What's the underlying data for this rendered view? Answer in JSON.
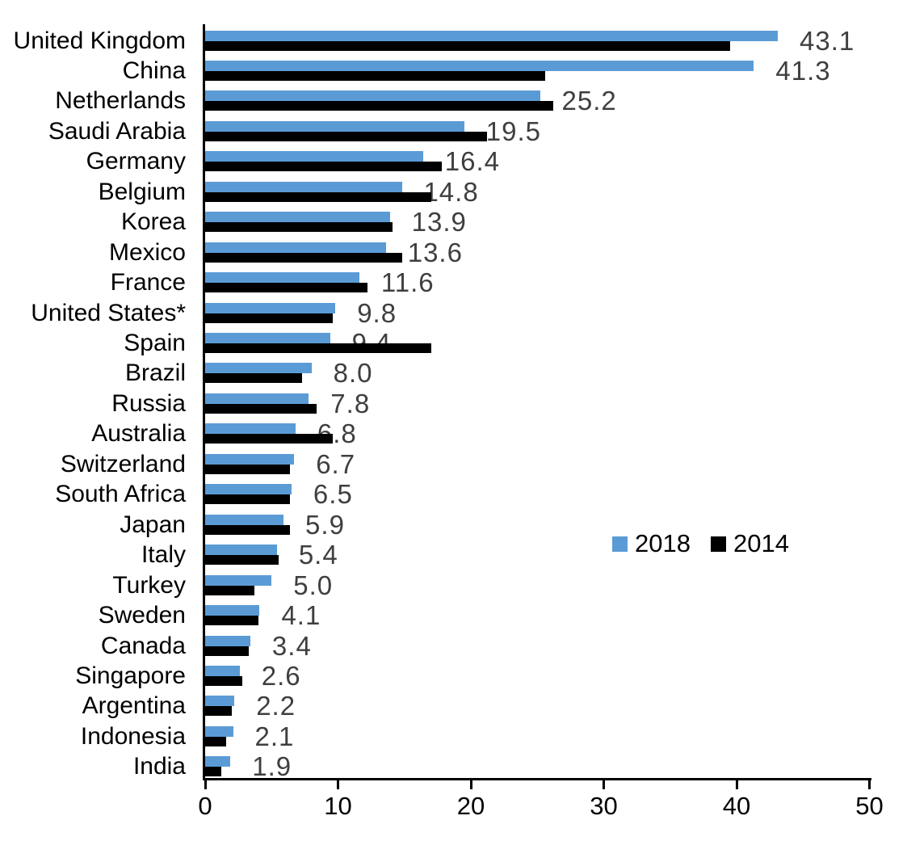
{
  "chart_data": {
    "type": "bar",
    "orientation": "horizontal",
    "title": "",
    "xlabel": "",
    "ylabel": "",
    "xlim": [
      0,
      50
    ],
    "x_ticks": [
      0,
      10,
      20,
      30,
      40,
      50
    ],
    "grid": false,
    "legend_position": "middle-right",
    "categories": [
      "United Kingdom",
      "China",
      "Netherlands",
      "Saudi Arabia",
      "Germany",
      "Belgium",
      "Korea",
      "Mexico",
      "France",
      "United States*",
      "Spain",
      "Brazil",
      "Russia",
      "Australia",
      "Switzerland",
      "South Africa",
      "Japan",
      "Italy",
      "Turkey",
      "Sweden",
      "Canada",
      "Singapore",
      "Argentina",
      "Indonesia",
      "India"
    ],
    "series": [
      {
        "name": "2018",
        "color": "#5B9BD5",
        "values": [
          43.1,
          41.3,
          25.2,
          19.5,
          16.4,
          14.8,
          13.9,
          13.6,
          11.6,
          9.8,
          9.4,
          8.0,
          7.8,
          6.8,
          6.7,
          6.5,
          5.9,
          5.4,
          5.0,
          4.1,
          3.4,
          2.6,
          2.2,
          2.1,
          1.9
        ]
      },
      {
        "name": "2014",
        "color": "#000000",
        "values": [
          39.5,
          25.6,
          26.2,
          21.2,
          17.8,
          17.0,
          14.1,
          14.8,
          12.2,
          9.6,
          17.0,
          7.3,
          8.4,
          9.6,
          6.4,
          6.4,
          6.4,
          5.5,
          3.7,
          4.0,
          3.3,
          2.8,
          2.0,
          1.6,
          1.2
        ]
      }
    ],
    "data_labels": {
      "on_series": "2018",
      "decimals": 1,
      "color": "#3F3F3F",
      "values_text": [
        "43.1",
        "41.3",
        "25.2",
        "19.5",
        "16.4",
        "14.8",
        "13.9",
        "13.6",
        "11.6",
        "9.8",
        "9.4",
        "8.0",
        "7.8",
        "6.8",
        "6.7",
        "6.5",
        "5.9",
        "5.4",
        "5.0",
        "4.1",
        "3.4",
        "2.6",
        "2.2",
        "2.1",
        "1.9"
      ]
    },
    "x_tick_labels": [
      "0",
      "10",
      "20",
      "30",
      "40",
      "50"
    ]
  }
}
